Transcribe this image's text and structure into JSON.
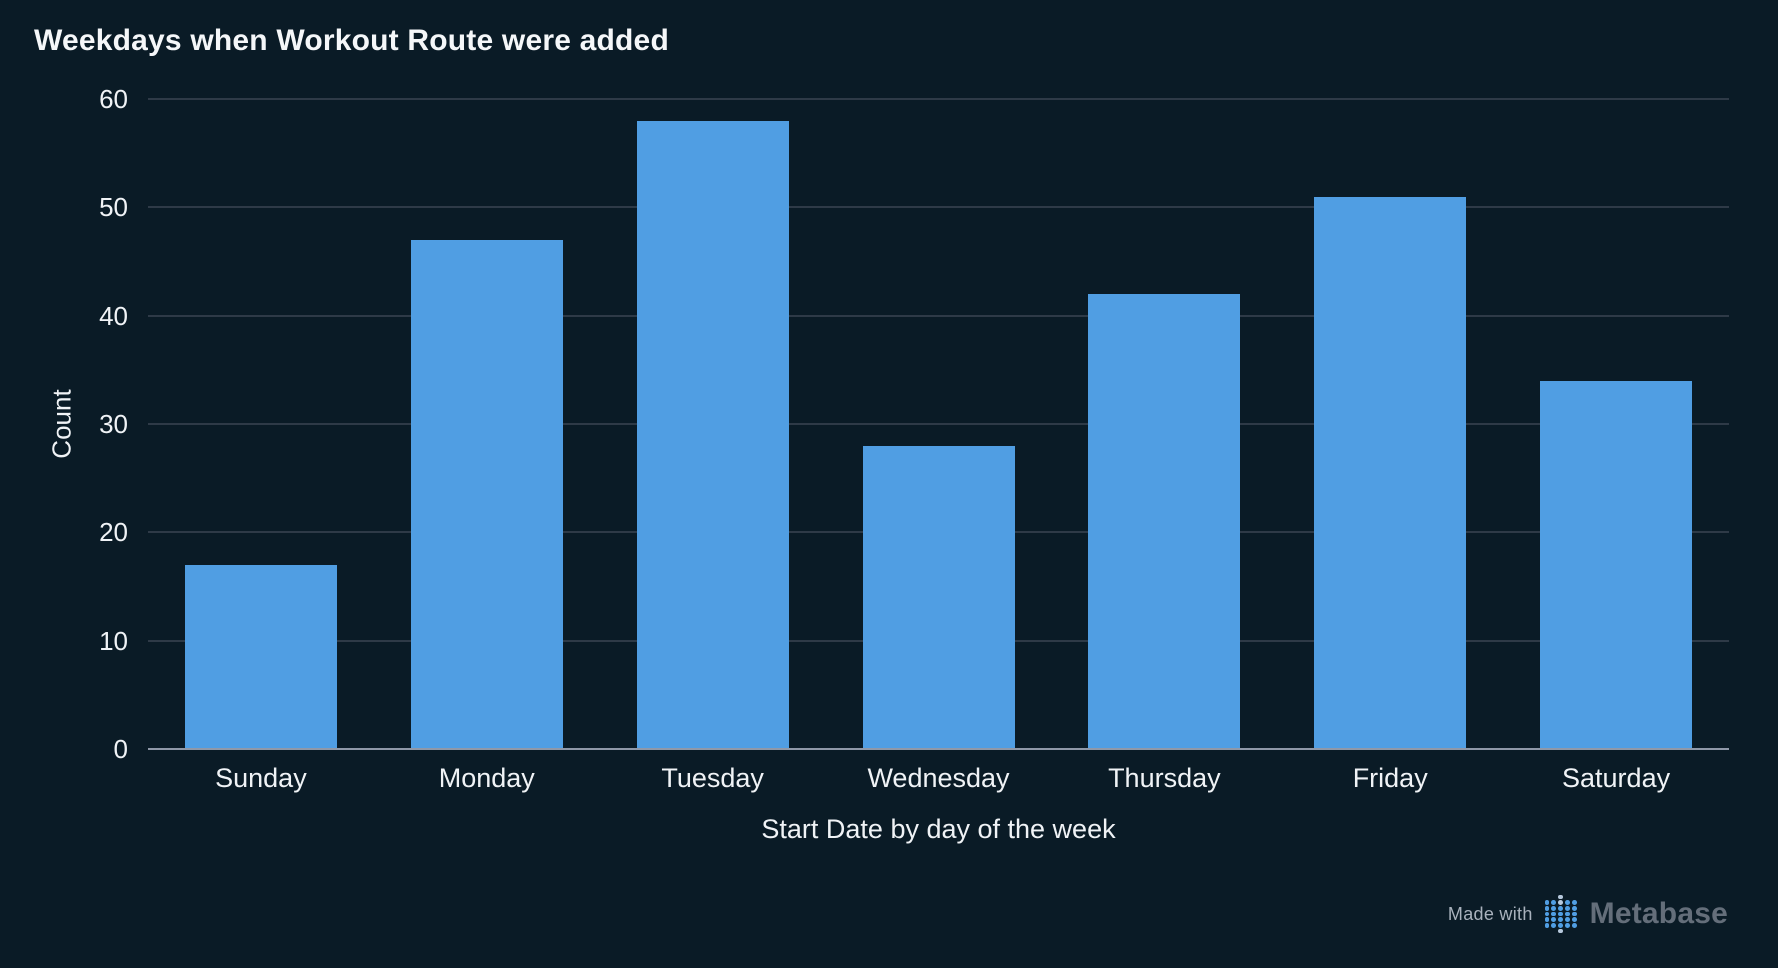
{
  "chart_data": {
    "type": "bar",
    "title": "Weekdays when Workout Route were added",
    "categories": [
      "Sunday",
      "Monday",
      "Tuesday",
      "Wednesday",
      "Thursday",
      "Friday",
      "Saturday"
    ],
    "values": [
      17,
      47,
      58,
      28,
      42,
      51,
      34
    ],
    "xlabel": "Start Date by day of the week",
    "ylabel": "Count",
    "ylim": [
      0,
      60
    ],
    "yticks": [
      0,
      10,
      20,
      30,
      40,
      50,
      60
    ],
    "grid": true,
    "legend": "none",
    "bar_color": "#509EE3"
  },
  "footer": {
    "made_with": "Made with",
    "brand": "Metabase"
  },
  "colors": {
    "background": "#0A1B26",
    "bar": "#509EE3",
    "gridline": "#2E3A47",
    "axis_line": "#8F98A8",
    "text": "#F0F3F6",
    "title_text": "#F5F7F9",
    "made_with_text": "#A9B2BD",
    "brand_text": "#646E7A",
    "logo_dot": "#509EE3",
    "logo_dot_light": "#B7C9DD"
  }
}
